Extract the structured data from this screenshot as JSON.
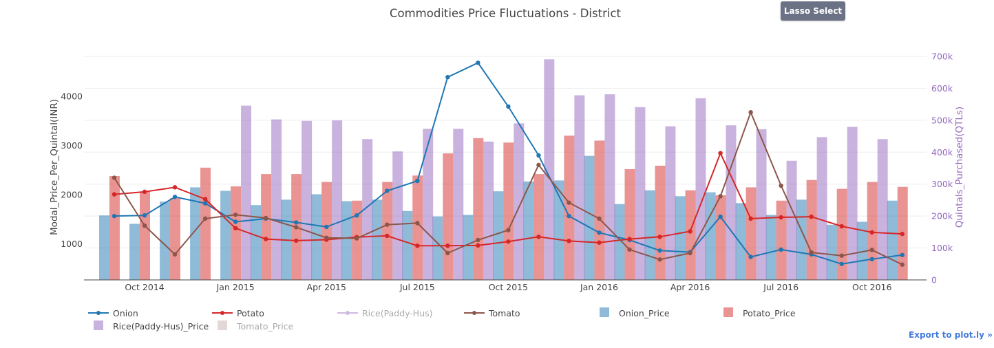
{
  "title": "Commodities Price Fluctuations - District",
  "toolbar": {
    "lasso_label": "Lasso Select"
  },
  "export_label": "Export to plot.ly »",
  "colors": {
    "onion": "#1f77b4",
    "potato": "#d62728",
    "rice": "#9467bd",
    "tomato": "#8c564b",
    "axis_right": "#9467bd"
  },
  "legend": [
    {
      "name": "Onion",
      "kind": "line",
      "color": "#1f77b4",
      "hidden": false
    },
    {
      "name": "Potato",
      "kind": "line",
      "color": "#d62728",
      "hidden": false
    },
    {
      "name": "Rice(Paddy-Hus)",
      "kind": "line",
      "color": "#9467bd",
      "hidden": true
    },
    {
      "name": "Tomato",
      "kind": "line",
      "color": "#8c564b",
      "hidden": false
    },
    {
      "name": "Onion_Price",
      "kind": "bar",
      "color": "#1f77b4",
      "hidden": false
    },
    {
      "name": "Potato_Price",
      "kind": "bar",
      "color": "#d62728",
      "hidden": false
    },
    {
      "name": "Rice(Paddy-Hus)_Price",
      "kind": "bar",
      "color": "#9467bd",
      "hidden": false
    },
    {
      "name": "Tomato_Price",
      "kind": "bar",
      "color": "#8c564b",
      "hidden": true
    }
  ],
  "chart_data": {
    "type": "bar",
    "title": "Commodities Price Fluctuations - District",
    "ylabel": "Modal_Price_Per_Quintal(INR)",
    "y2label": "Quintals_Purchased(QTLs)",
    "ylim": [
      270,
      4810
    ],
    "y2lim": [
      0,
      700000
    ],
    "y_ticks": [
      1000,
      2000,
      3000,
      4000
    ],
    "y2_ticks": [
      0,
      100000,
      200000,
      300000,
      400000,
      500000,
      600000,
      700000
    ],
    "y2_tick_labels": [
      "0",
      "100k",
      "200k",
      "300k",
      "400k",
      "500k",
      "600k",
      "700k"
    ],
    "x_tick_labels": [
      {
        "label": "Oct 2014",
        "month": 1
      },
      {
        "label": "Jan 2015",
        "month": 4
      },
      {
        "label": "Apr 2015",
        "month": 7
      },
      {
        "label": "Jul 2015",
        "month": 10
      },
      {
        "label": "Oct 2015",
        "month": 13
      },
      {
        "label": "Jan 2016",
        "month": 16
      },
      {
        "label": "Apr 2016",
        "month": 19
      },
      {
        "label": "Jul 2016",
        "month": 22
      },
      {
        "label": "Oct 2016",
        "month": 25
      }
    ],
    "months": [
      "Sep 2014",
      "Oct 2014",
      "Nov 2014",
      "Dec 2014",
      "Jan 2015",
      "Feb 2015",
      "Mar 2015",
      "Apr 2015",
      "May 2015",
      "Jun 2015",
      "Jul 2015",
      "Aug 2015",
      "Sep 2015",
      "Oct 2015",
      "Nov 2015",
      "Dec 2015",
      "Jan 2016",
      "Feb 2016",
      "Mar 2016",
      "Apr 2016",
      "May 2016",
      "Jun 2016",
      "Jul 2016",
      "Aug 2016",
      "Sep 2016",
      "Oct 2016",
      "Nov 2016"
    ],
    "bars": [
      {
        "name": "Onion_Price",
        "color": "#1f77b4",
        "axis": "y",
        "values": [
          1580,
          1410,
          1860,
          2150,
          2080,
          1790,
          1900,
          2010,
          1870,
          1900,
          1670,
          1560,
          1590,
          2070,
          2270,
          2290,
          2790,
          1810,
          2090,
          1970,
          2050,
          1830,
          1590,
          1900,
          1390,
          1450,
          1880
        ]
      },
      {
        "name": "Potato_Price",
        "color": "#d62728",
        "axis": "y",
        "values": [
          2380,
          2060,
          1930,
          2550,
          2170,
          2420,
          2420,
          2260,
          1880,
          2260,
          2390,
          2840,
          3150,
          3060,
          2420,
          3200,
          3100,
          2520,
          2590,
          2090,
          1990,
          2150,
          1880,
          2300,
          2120,
          2260,
          2160
        ]
      },
      {
        "name": "Rice(Paddy-Hus)_Price",
        "color": "#9467bd",
        "axis": "y",
        "values": [
          null,
          null,
          null,
          null,
          3810,
          3530,
          3500,
          3510,
          3130,
          2880,
          3340,
          3340,
          3080,
          3450,
          4750,
          4020,
          4040,
          3780,
          3390,
          3960,
          3410,
          3330,
          2690,
          3170,
          3380,
          3130,
          null
        ]
      }
    ],
    "series": [
      {
        "name": "Onion",
        "color": "#1f77b4",
        "axis": "y2",
        "start": 0,
        "values": [
          200000,
          202000,
          260000,
          240000,
          182000,
          192000,
          180000,
          166000,
          202000,
          279000,
          310000,
          635000,
          680000,
          543000,
          390000,
          200000,
          148000,
          125000,
          92000,
          87000,
          198000,
          72000,
          95000,
          80000,
          50000,
          65000,
          78000
        ]
      },
      {
        "name": "Potato",
        "color": "#d62728",
        "axis": "y2",
        "start": 0,
        "values": [
          268000,
          276000,
          290000,
          253000,
          162000,
          128000,
          123000,
          126000,
          134000,
          138000,
          107000,
          107000,
          108000,
          120000,
          135000,
          122000,
          117000,
          128000,
          135000,
          152000,
          397000,
          192000,
          196000,
          198000,
          168000,
          149000,
          144000
        ]
      },
      {
        "name": "Tomato",
        "color": "#8c564b",
        "axis": "y2",
        "start": 0,
        "values": [
          320000,
          170000,
          80000,
          192000,
          204000,
          194000,
          165000,
          132000,
          130000,
          173000,
          178000,
          84000,
          125000,
          156000,
          360000,
          242000,
          192000,
          95000,
          64000,
          84000,
          262000,
          525000,
          295000,
          86000,
          76000,
          94000,
          48000
        ]
      }
    ]
  }
}
